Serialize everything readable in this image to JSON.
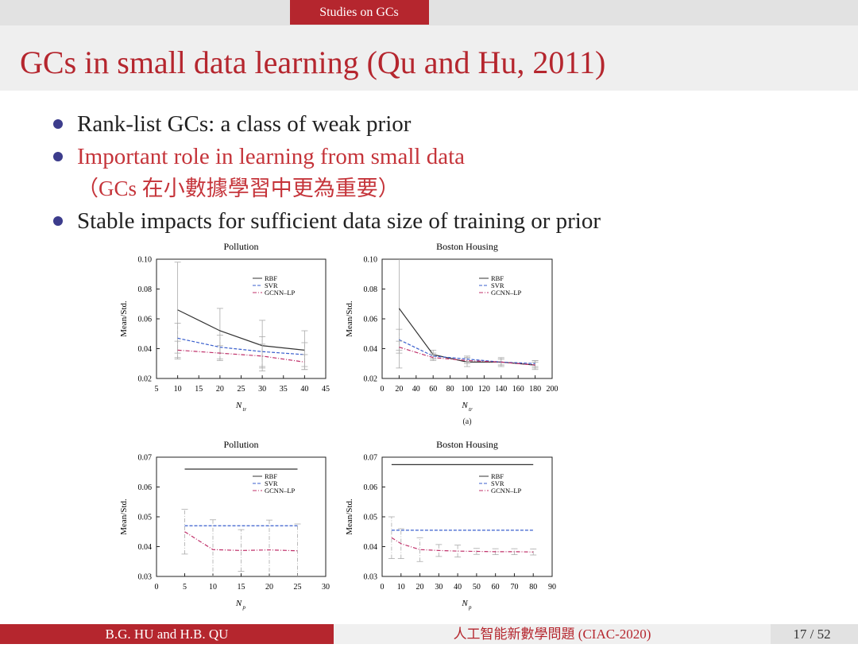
{
  "header": {
    "section": "Studies on GCs",
    "title": "GCs in small data learning (Qu and Hu, 2011)"
  },
  "bullets": [
    {
      "lines": [
        "Rank-list GCs: a class of weak prior"
      ]
    },
    {
      "lines": [
        "Important role in learning from small data",
        "（GCs 在小數據學習中更為重要）"
      ]
    },
    {
      "lines": [
        "Stable impacts for sufficient data size of training or prior"
      ]
    }
  ],
  "chart_data": [
    {
      "type": "line",
      "title": "Pollution",
      "ylabel": "Mean/Std.",
      "xlabel": "N",
      "xlabel_sub": "tr",
      "x": [
        10,
        20,
        30,
        40
      ],
      "xlim": [
        5,
        45
      ],
      "xticks": [
        5,
        10,
        15,
        20,
        25,
        30,
        35,
        40,
        45
      ],
      "ylim": [
        0.02,
        0.1
      ],
      "yticks": [
        0.02,
        0.04,
        0.06,
        0.08,
        {
          "value": 0.1,
          "label": "0.10"
        }
      ],
      "series": [
        {
          "name": "RBF",
          "color": "#333333",
          "dash": "solid",
          "values": [
            0.066,
            0.052,
            0.042,
            0.039
          ],
          "errors": [
            0.032,
            0.015,
            0.017,
            0.013
          ]
        },
        {
          "name": "SVR",
          "color": "#3a5fcd",
          "dash": "dashed",
          "values": [
            0.047,
            0.041,
            0.038,
            0.036
          ],
          "errors": [
            0.01,
            0.008,
            0.01,
            0.008
          ]
        },
        {
          "name": "GCNN–LP",
          "color": "#c0306a",
          "dash": "dashdot",
          "values": [
            0.039,
            0.037,
            0.035,
            0.031
          ],
          "errors": [
            0.006,
            0.005,
            0.008,
            0.005
          ]
        }
      ]
    },
    {
      "type": "line",
      "title": "Boston Housing",
      "ylabel": "Mean/Std.",
      "xlabel": "N",
      "xlabel_sub": "tr",
      "x": [
        20,
        60,
        100,
        140,
        180
      ],
      "xlim": [
        0,
        200
      ],
      "xticks": [
        0,
        20,
        40,
        60,
        80,
        100,
        120,
        140,
        160,
        180,
        200
      ],
      "ylim": [
        0.02,
        0.1
      ],
      "yticks": [
        0.02,
        0.04,
        0.06,
        0.08,
        {
          "value": 0.1,
          "label": "0.10"
        }
      ],
      "series": [
        {
          "name": "RBF",
          "color": "#333333",
          "dash": "solid",
          "values": [
            0.067,
            0.036,
            0.031,
            0.031,
            0.029
          ],
          "errors": [
            0.04,
            0.003,
            0.003,
            0.003,
            0.003
          ]
        },
        {
          "name": "SVR",
          "color": "#3a5fcd",
          "dash": "dashed",
          "values": [
            0.046,
            0.035,
            0.033,
            0.031,
            0.03
          ],
          "errors": [
            0.007,
            0.002,
            0.002,
            0.002,
            0.002
          ]
        },
        {
          "name": "GCNN–LP",
          "color": "#c0306a",
          "dash": "dashdot",
          "values": [
            0.041,
            0.034,
            0.032,
            0.031,
            0.029
          ],
          "errors": [
            0.004,
            0.002,
            0.002,
            0.002,
            0.002
          ]
        }
      ]
    },
    {
      "type": "line",
      "title": "Pollution",
      "ylabel": "Mean/Std.",
      "xlabel": "N",
      "xlabel_sub": "p",
      "x": [
        5,
        10,
        15,
        20,
        25
      ],
      "xlim": [
        0,
        30
      ],
      "xticks": [
        0,
        5,
        10,
        15,
        20,
        25,
        30
      ],
      "ylim": [
        0.03,
        0.07
      ],
      "yticks": [
        0.03,
        0.04,
        0.05,
        0.06,
        0.07
      ],
      "series": [
        {
          "name": "RBF",
          "color": "#333333",
          "dash": "solid",
          "values": [
            0.066,
            0.066,
            0.066,
            0.066,
            0.066
          ]
        },
        {
          "name": "SVR",
          "color": "#3a5fcd",
          "dash": "dashed",
          "values": [
            0.047,
            0.047,
            0.047,
            0.047,
            0.047
          ]
        },
        {
          "name": "GCNN–LP",
          "color": "#c0306a",
          "dash": "dashdot",
          "values": [
            0.045,
            0.039,
            0.0387,
            0.0389,
            0.0386
          ],
          "errors": [
            0.0075,
            0.01,
            0.007,
            0.01,
            0.009
          ]
        }
      ]
    },
    {
      "type": "line",
      "title": "Boston Housing",
      "ylabel": "Mean/Std.",
      "xlabel": "N",
      "xlabel_sub": "p",
      "x": [
        5,
        10,
        20,
        30,
        40,
        50,
        60,
        70,
        80
      ],
      "xlim": [
        0,
        90
      ],
      "xticks": [
        0,
        10,
        20,
        30,
        40,
        50,
        60,
        70,
        80,
        90
      ],
      "ylim": [
        0.03,
        0.07
      ],
      "yticks": [
        0.03,
        0.04,
        0.05,
        0.06,
        0.07
      ],
      "series": [
        {
          "name": "RBF",
          "color": "#333333",
          "dash": "solid",
          "values": [
            0.0675,
            0.0675,
            0.0675,
            0.0675,
            0.0675,
            0.0675,
            0.0675,
            0.0675,
            0.0675
          ]
        },
        {
          "name": "SVR",
          "color": "#3a5fcd",
          "dash": "dashed",
          "values": [
            0.0455,
            0.0455,
            0.0455,
            0.0455,
            0.0455,
            0.0455,
            0.0455,
            0.0455,
            0.0455
          ]
        },
        {
          "name": "GCNN–LP",
          "color": "#c0306a",
          "dash": "dashdot",
          "values": [
            0.043,
            0.041,
            0.039,
            0.0387,
            0.0385,
            0.0384,
            0.0383,
            0.0383,
            0.0382
          ],
          "errors": [
            0.007,
            0.005,
            0.004,
            0.002,
            0.002,
            0.001,
            0.001,
            0.001,
            0.001
          ]
        }
      ]
    }
  ],
  "figure_label": "(a)",
  "footer": {
    "authors": "B.G. HU and H.B. QU",
    "event": "人工智能新數學問題 (CIAC-2020)",
    "page": "17 / 52"
  }
}
